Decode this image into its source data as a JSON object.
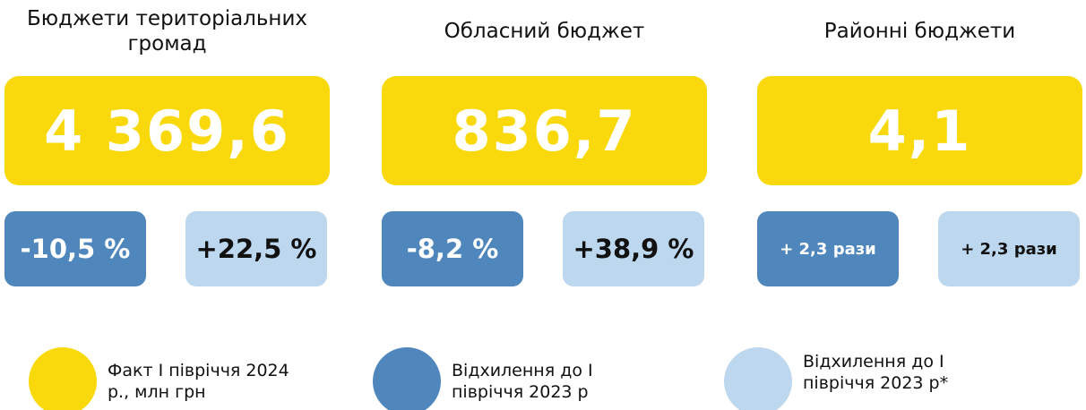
{
  "columns": [
    {
      "title": "Бюджети територіальних громад",
      "fact": "4 369,6",
      "deviation": "-10,5 %",
      "deviation_alt": "+22,5 %"
    },
    {
      "title": "Обласний бюджет",
      "fact": "836,7",
      "deviation": "-8,2 %",
      "deviation_alt": "+38,9 %"
    },
    {
      "title": "Районні бюджети",
      "fact": "4,1",
      "deviation": "+ 2,3 рази",
      "deviation_alt": "+ 2,3 рази"
    }
  ],
  "legend": [
    {
      "label": "Факт І півріччя 2024 р., млн грн"
    },
    {
      "label": "Відхилення до І півріччя 2023 р"
    },
    {
      "label": "Відхилення до І півріччя 2023 р*"
    }
  ]
}
